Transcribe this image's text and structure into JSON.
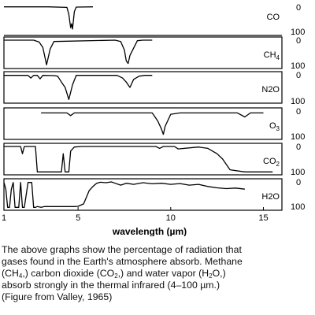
{
  "chart_data": {
    "type": "line",
    "xlabel": "wavelength (µm)",
    "x_ticks": [
      1,
      5,
      10,
      15
    ],
    "xlim": [
      1,
      16
    ],
    "ylim": [
      0,
      100
    ],
    "y_tick_top": "0",
    "y_tick_bottom": "100",
    "panels": [
      {
        "name": "CO",
        "x": [
          1,
          3.4,
          4.4,
          4.5,
          4.6,
          4.65,
          4.7,
          4.8,
          4.9,
          5.8
        ],
        "y": [
          2,
          2,
          4,
          30,
          80,
          65,
          85,
          20,
          3,
          2
        ]
      },
      {
        "name": "CH4",
        "x": [
          1,
          2.6,
          2.9,
          3.1,
          3.3,
          3.5,
          3.7,
          7.0,
          7.3,
          7.5,
          7.6,
          7.7,
          7.8,
          8.2,
          8.5,
          9.0
        ],
        "y": [
          3,
          3,
          10,
          30,
          95,
          35,
          8,
          3,
          8,
          40,
          80,
          90,
          60,
          5,
          3,
          3
        ]
      },
      {
        "name": "N2O",
        "x": [
          1,
          2.3,
          2.45,
          2.6,
          2.8,
          2.95,
          3.1,
          3.7,
          3.9,
          4.1,
          4.3,
          4.5,
          4.7,
          4.9,
          5.1,
          7.1,
          7.4,
          7.6,
          7.8,
          8.0,
          8.3,
          8.6,
          9.0
        ],
        "y": [
          5,
          5,
          15,
          5,
          5,
          18,
          5,
          6,
          8,
          30,
          50,
          95,
          40,
          5,
          5,
          5,
          15,
          30,
          50,
          20,
          8,
          5,
          5
        ]
      },
      {
        "name": "O3",
        "x": [
          3,
          4.4,
          4.6,
          4.8,
          5.0,
          5.2,
          9.0,
          9.3,
          9.5,
          9.6,
          9.7,
          10.0,
          10.5,
          13.6,
          14.0,
          14.3,
          15.0
        ],
        "y": [
          10,
          10,
          20,
          10,
          10,
          10,
          10,
          40,
          70,
          90,
          60,
          15,
          10,
          10,
          25,
          10,
          10
        ]
      },
      {
        "name": "CO2",
        "x": [
          1,
          1.9,
          2.0,
          2.1,
          2.7,
          2.8,
          2.9,
          4.1,
          4.2,
          4.3,
          4.5,
          4.6,
          4.8,
          5.2,
          9.2,
          9.4,
          9.6,
          10.2,
          10.4,
          11.5,
          12.0,
          12.5,
          12.8,
          13.2,
          14.0,
          14.8,
          15.5
        ],
        "y": [
          3,
          3,
          30,
          3,
          3,
          98,
          98,
          98,
          30,
          98,
          98,
          20,
          5,
          3,
          3,
          10,
          3,
          3,
          12,
          5,
          10,
          30,
          50,
          90,
          98,
          98,
          98
        ]
      },
      {
        "name": "H2O",
        "x": [
          1,
          1.1,
          1.2,
          1.3,
          1.4,
          1.5,
          1.6,
          1.8,
          1.9,
          2.0,
          2.1,
          2.3,
          2.5,
          2.6,
          2.7,
          2.8,
          3.0,
          3.2,
          3.6,
          4.5,
          4.8,
          5.0,
          5.3,
          5.6,
          5.8,
          6.0,
          6.2,
          6.5,
          6.8,
          7.0,
          7.3,
          7.6,
          8.0,
          8.5,
          9.0,
          9.5,
          10.0,
          10.5,
          11.0,
          11.5,
          12.0,
          12.5,
          13.0,
          13.5,
          14.0
        ],
        "y": [
          5,
          30,
          98,
          98,
          30,
          5,
          98,
          98,
          5,
          98,
          98,
          5,
          5,
          98,
          98,
          95,
          98,
          95,
          95,
          95,
          95,
          94,
          85,
          35,
          20,
          8,
          4,
          6,
          3,
          8,
          15,
          8,
          12,
          6,
          10,
          8,
          12,
          9,
          15,
          12,
          20,
          25,
          28,
          26,
          30
        ]
      }
    ]
  },
  "caption": {
    "line1": "The above graphs show the percentage of radiation that",
    "line2": "gases found in the Earth's atmosphere absorb. Methane",
    "line3a": "(CH",
    "line3b": ",) carbon dioxide (CO",
    "line3c": ",) and water vapor (H",
    "line3d": "O,)",
    "line4": "absorb strongly in the thermal infrared (4–100 µm.)",
    "line5": "(Figure from Valley, 1965)",
    "sub4": "4",
    "sub2": "2"
  }
}
